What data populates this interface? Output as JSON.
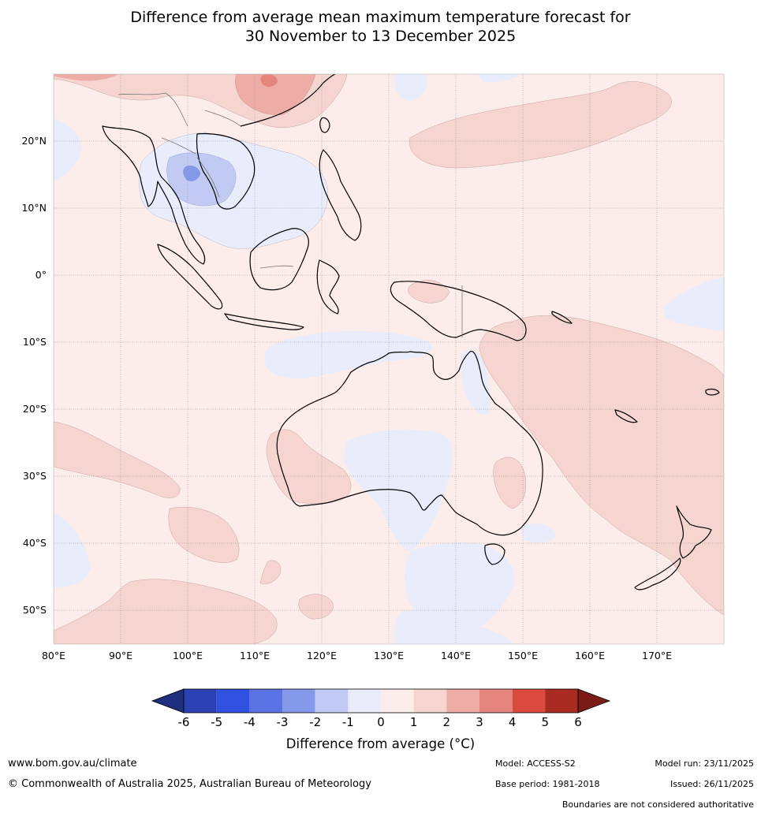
{
  "title_line1": "Difference from average mean maximum temperature forecast for",
  "title_line2": "30 November to 13 December 2025",
  "lat_labels": [
    "20°N",
    "10°N",
    "0°",
    "10°S",
    "20°S",
    "30°S",
    "40°S",
    "50°S"
  ],
  "lon_labels": [
    "80°E",
    "90°E",
    "100°E",
    "110°E",
    "120°E",
    "130°E",
    "140°E",
    "150°E",
    "160°E",
    "170°E"
  ],
  "colorbar": {
    "ticks": [
      "-6",
      "-5",
      "-4",
      "-3",
      "-2",
      "-1",
      "0",
      "1",
      "2",
      "3",
      "4",
      "5",
      "6"
    ],
    "colors": [
      "#1f2f80",
      "#2a40b3",
      "#3050e0",
      "#5a72e4",
      "#8599ea",
      "#c1caf2",
      "#e9edfb",
      "#fcecea",
      "#f6d4d0",
      "#edaca6",
      "#e5857d",
      "#da4a3e",
      "#aa2b22",
      "#7a1b16"
    ],
    "title": "Difference from average (°C)"
  },
  "footer": {
    "website": "www.bom.gov.au/climate",
    "copyright": "© Commonwealth of Australia 2025, Australian Bureau of Meteorology",
    "model": "Model: ACCESS-S2",
    "base_period": "Base period: 1981-2018",
    "model_run": "Model run: 23/11/2025",
    "issued": "Issued: 26/11/2025",
    "disclaimer": "Boundaries are not considered authoritative"
  }
}
